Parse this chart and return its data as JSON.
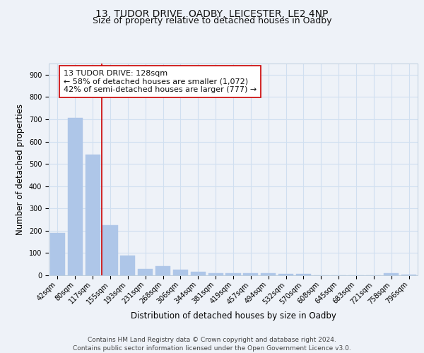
{
  "title_line1": "13, TUDOR DRIVE, OADBY, LEICESTER, LE2 4NP",
  "title_line2": "Size of property relative to detached houses in Oadby",
  "xlabel": "Distribution of detached houses by size in Oadby",
  "ylabel": "Number of detached properties",
  "categories": [
    "42sqm",
    "80sqm",
    "117sqm",
    "155sqm",
    "193sqm",
    "231sqm",
    "268sqm",
    "306sqm",
    "344sqm",
    "381sqm",
    "419sqm",
    "457sqm",
    "494sqm",
    "532sqm",
    "570sqm",
    "608sqm",
    "645sqm",
    "683sqm",
    "721sqm",
    "758sqm",
    "796sqm"
  ],
  "values": [
    190,
    705,
    540,
    225,
    90,
    30,
    40,
    25,
    15,
    10,
    10,
    10,
    8,
    5,
    5,
    0,
    0,
    0,
    0,
    8,
    2
  ],
  "bar_color": "#aec6e8",
  "bar_edge_color": "#aec6e8",
  "grid_color": "#d0dff0",
  "background_color": "#eef2f8",
  "vline_color": "#cc0000",
  "annotation_text": "13 TUDOR DRIVE: 128sqm\n← 58% of detached houses are smaller (1,072)\n42% of semi-detached houses are larger (777) →",
  "ylim": [
    0,
    950
  ],
  "yticks": [
    0,
    100,
    200,
    300,
    400,
    500,
    600,
    700,
    800,
    900
  ],
  "footer_text": "Contains HM Land Registry data © Crown copyright and database right 2024.\nContains public sector information licensed under the Open Government Licence v3.0.",
  "title_fontsize": 10,
  "subtitle_fontsize": 9,
  "axis_label_fontsize": 8.5,
  "tick_fontsize": 7,
  "annotation_fontsize": 8,
  "footer_fontsize": 6.5
}
